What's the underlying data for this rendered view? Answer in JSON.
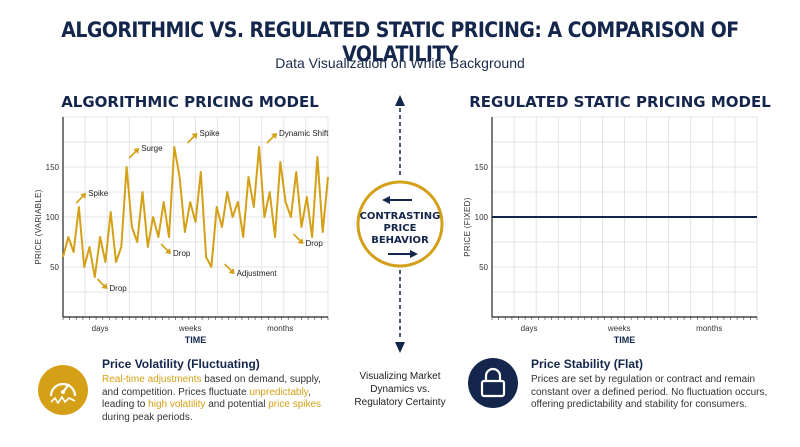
{
  "header": {
    "title": "ALGORITHMIC VS. REGULATED STATIC PRICING: A COMPARISON OF VOLATILITY",
    "subtitle": "Data Visualization on White Background"
  },
  "center": {
    "line1": "CONTRASTING",
    "line2": "PRICE",
    "line3": "BEHAVIOR",
    "caption_line1": "Visualizing Market",
    "caption_line2": "Dynamics vs.",
    "caption_line3": "Regulatory Certainty"
  },
  "colors": {
    "gold": "#d4a017",
    "navy": "#14264b",
    "grid": "#dcdcdc"
  },
  "chart_data": [
    {
      "type": "line",
      "title": "ALGORITHMIC PRICING MODEL",
      "xlabel": "TIME",
      "ylabel": "PRICE (VARIABLE)",
      "xlim": [
        0,
        50
      ],
      "ylim": [
        0,
        200
      ],
      "yticks": [
        50,
        100,
        150
      ],
      "xtick_labels": [
        {
          "x": 7,
          "label": "days"
        },
        {
          "x": 24,
          "label": "weeks"
        },
        {
          "x": 41,
          "label": "months"
        }
      ],
      "series": [
        {
          "color": "#d4a017",
          "x": [
            0,
            1,
            2,
            3,
            4,
            5,
            6,
            7,
            8,
            9,
            10,
            11,
            12,
            13,
            14,
            15,
            16,
            17,
            18,
            19,
            20,
            21,
            22,
            23,
            24,
            25,
            26,
            27,
            28,
            29,
            30,
            31,
            32,
            33,
            34,
            35,
            36,
            37,
            38,
            39,
            40,
            41,
            42,
            43,
            44,
            45,
            46,
            47,
            48,
            49,
            50
          ],
          "y": [
            60,
            80,
            65,
            110,
            50,
            70,
            40,
            80,
            55,
            105,
            55,
            70,
            150,
            90,
            75,
            125,
            70,
            100,
            80,
            115,
            80,
            170,
            140,
            85,
            115,
            95,
            145,
            60,
            50,
            110,
            90,
            125,
            100,
            115,
            80,
            140,
            110,
            170,
            100,
            125,
            80,
            155,
            115,
            100,
            145,
            90,
            120,
            80,
            160,
            85,
            140
          ]
        }
      ],
      "annotations": [
        {
          "x": 4,
          "y": 120,
          "label": "Spike",
          "dir": "up"
        },
        {
          "x": 8,
          "y": 30,
          "label": "Drop",
          "dir": "down"
        },
        {
          "x": 14,
          "y": 165,
          "label": "Surge",
          "dir": "up"
        },
        {
          "x": 20,
          "y": 65,
          "label": "Drop",
          "dir": "down"
        },
        {
          "x": 25,
          "y": 180,
          "label": "Spike",
          "dir": "up"
        },
        {
          "x": 32,
          "y": 45,
          "label": "Adjustment",
          "dir": "down"
        },
        {
          "x": 40,
          "y": 180,
          "label": "Dynamic Shift",
          "dir": "up"
        },
        {
          "x": 45,
          "y": 75,
          "label": "Drop",
          "dir": "down"
        }
      ]
    },
    {
      "type": "line",
      "title": "REGULATED STATIC PRICING MODEL",
      "xlabel": "TIME",
      "ylabel": "PRICE (FIXED)",
      "xlim": [
        0,
        50
      ],
      "ylim": [
        0,
        200
      ],
      "yticks": [
        50,
        100,
        150
      ],
      "xtick_labels": [
        {
          "x": 7,
          "label": "days"
        },
        {
          "x": 24,
          "label": "weeks"
        },
        {
          "x": 41,
          "label": "months"
        }
      ],
      "series": [
        {
          "color": "#14264b",
          "x": [
            0,
            50
          ],
          "y": [
            100,
            100
          ]
        }
      ]
    }
  ],
  "left_info": {
    "title": "Price Volatility (Fluctuating)",
    "hl1": "Real-time adjustments",
    "t1": " based on demand, supply, and competition. Prices fluctuate ",
    "hl2": "unpredictably",
    "t2": ", leading to ",
    "hl3": "high volatility",
    "t3": " and potential ",
    "hl4": "price spikes",
    "t4": " during peak periods.",
    "icon": "gauge-icon"
  },
  "right_info": {
    "title": "Price Stability (Flat)",
    "text": "Prices are set by regulation or contract and remain constant over a defined period. No fluctuation occurs, offering predictability and stability for consumers.",
    "icon": "lock-icon"
  }
}
